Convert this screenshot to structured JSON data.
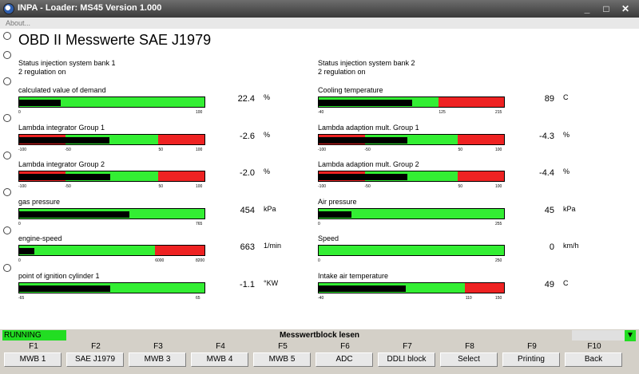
{
  "window": {
    "title": "INPA - Loader:  MS45 Version 1.000",
    "minimize": "_",
    "maximize": "□",
    "close": "✕"
  },
  "menu": {
    "about": "About..."
  },
  "page": {
    "title": "OBD II Messwerte SAE J1979"
  },
  "status_left": {
    "line1": "Status injection system bank 1",
    "line2": "2 regulation on"
  },
  "status_right": {
    "line1": "Status injection system bank 2",
    "line2": "2 regulation on"
  },
  "gauges": [
    {
      "label": "calculated value of demand",
      "value": "22.4",
      "unit": "%",
      "min": 0,
      "max": 100,
      "current": 22.4,
      "ticks": [
        "0",
        "100"
      ],
      "tick_values": [
        0,
        100
      ],
      "red_from": null,
      "red_to": null
    },
    {
      "label": "Cooling temperature",
      "value": "89",
      "unit": "C",
      "min": -40,
      "max": 215,
      "current": 89,
      "ticks": [
        "-40",
        "125",
        "215"
      ],
      "tick_values": [
        -40,
        125,
        215
      ],
      "red_from": 125,
      "red_to": 215
    },
    {
      "label": "Lambda integrator Group 1",
      "value": "-2.6",
      "unit": "%",
      "min": -100,
      "max": 100,
      "current": -2.6,
      "ticks": [
        "-100",
        "-50",
        "50",
        "100"
      ],
      "tick_values": [
        -100,
        -50,
        50,
        100
      ],
      "red_low_to": -50,
      "red_from": 50,
      "red_to": 100
    },
    {
      "label": "Lambda adaption mult. Group 1",
      "value": "-4.3",
      "unit": "%",
      "min": -100,
      "max": 100,
      "current": -4.3,
      "ticks": [
        "-100",
        "-50",
        "50",
        "100"
      ],
      "tick_values": [
        -100,
        -50,
        50,
        100
      ],
      "red_low_to": -50,
      "red_from": 50,
      "red_to": 100
    },
    {
      "label": "Lambda integrator Group 2",
      "value": "-2.0",
      "unit": "%",
      "min": -100,
      "max": 100,
      "current": -2.0,
      "ticks": [
        "-100",
        "-50",
        "50",
        "100"
      ],
      "tick_values": [
        -100,
        -50,
        50,
        100
      ],
      "red_low_to": -50,
      "red_from": 50,
      "red_to": 100
    },
    {
      "label": "Lambda adaption mult. Group 2",
      "value": "-4.4",
      "unit": "%",
      "min": -100,
      "max": 100,
      "current": -4.4,
      "ticks": [
        "-100",
        "-50",
        "50",
        "100"
      ],
      "tick_values": [
        -100,
        -50,
        50,
        100
      ],
      "red_low_to": -50,
      "red_from": 50,
      "red_to": 100
    },
    {
      "label": "gas pressure",
      "value": "454",
      "unit": "kPa",
      "min": 0,
      "max": 765,
      "current": 454,
      "ticks": [
        "0",
        "765"
      ],
      "tick_values": [
        0,
        765
      ],
      "red_from": null,
      "red_to": null
    },
    {
      "label": "Air pressure",
      "value": "45",
      "unit": "kPa",
      "min": 0,
      "max": 255,
      "current": 45,
      "ticks": [
        "0",
        "255"
      ],
      "tick_values": [
        0,
        255
      ],
      "red_from": null,
      "red_to": null
    },
    {
      "label": "engine-speed",
      "value": "663",
      "unit": "1/min",
      "min": 0,
      "max": 8200,
      "current": 663,
      "ticks": [
        "0",
        "6000",
        "8200"
      ],
      "tick_values": [
        0,
        6000,
        8200
      ],
      "red_from": 6000,
      "red_to": 8200
    },
    {
      "label": "Speed",
      "value": "0",
      "unit": "km/h",
      "min": 0,
      "max": 250,
      "current": 0,
      "ticks": [
        "0",
        "250"
      ],
      "tick_values": [
        0,
        250
      ],
      "red_from": null,
      "red_to": null
    },
    {
      "label": "point of ignition cylinder 1",
      "value": "-1.1",
      "unit": "°KW",
      "min": -65,
      "max": 65,
      "current": -1.1,
      "ticks": [
        "-65",
        "65"
      ],
      "tick_values": [
        -65,
        65
      ],
      "red_from": null,
      "red_to": null
    },
    {
      "label": "Intake air temperature",
      "value": "49",
      "unit": "C",
      "min": -40,
      "max": 150,
      "current": 49,
      "ticks": [
        "-40",
        "110",
        "150"
      ],
      "tick_values": [
        -40,
        110,
        150
      ],
      "red_from": 110,
      "red_to": 150
    }
  ],
  "statusbar": {
    "state": "RUNNING",
    "message": "Messwertblock lesen"
  },
  "fkeys": [
    {
      "key": "F1",
      "label": "MWB 1"
    },
    {
      "key": "F2",
      "label": "SAE J1979"
    },
    {
      "key": "F3",
      "label": "MWB 3"
    },
    {
      "key": "F4",
      "label": "MWB 4"
    },
    {
      "key": "F5",
      "label": "MWB 5"
    },
    {
      "key": "F6",
      "label": "ADC"
    },
    {
      "key": "F7",
      "label": "DDLI block"
    },
    {
      "key": "F8",
      "label": "Select"
    },
    {
      "key": "F9",
      "label": "Printing"
    },
    {
      "key": "F10",
      "label": "Back"
    }
  ],
  "colors": {
    "green": "#33ee33",
    "red": "#ee2222",
    "fill": "#000000",
    "running": "#22dd22"
  }
}
